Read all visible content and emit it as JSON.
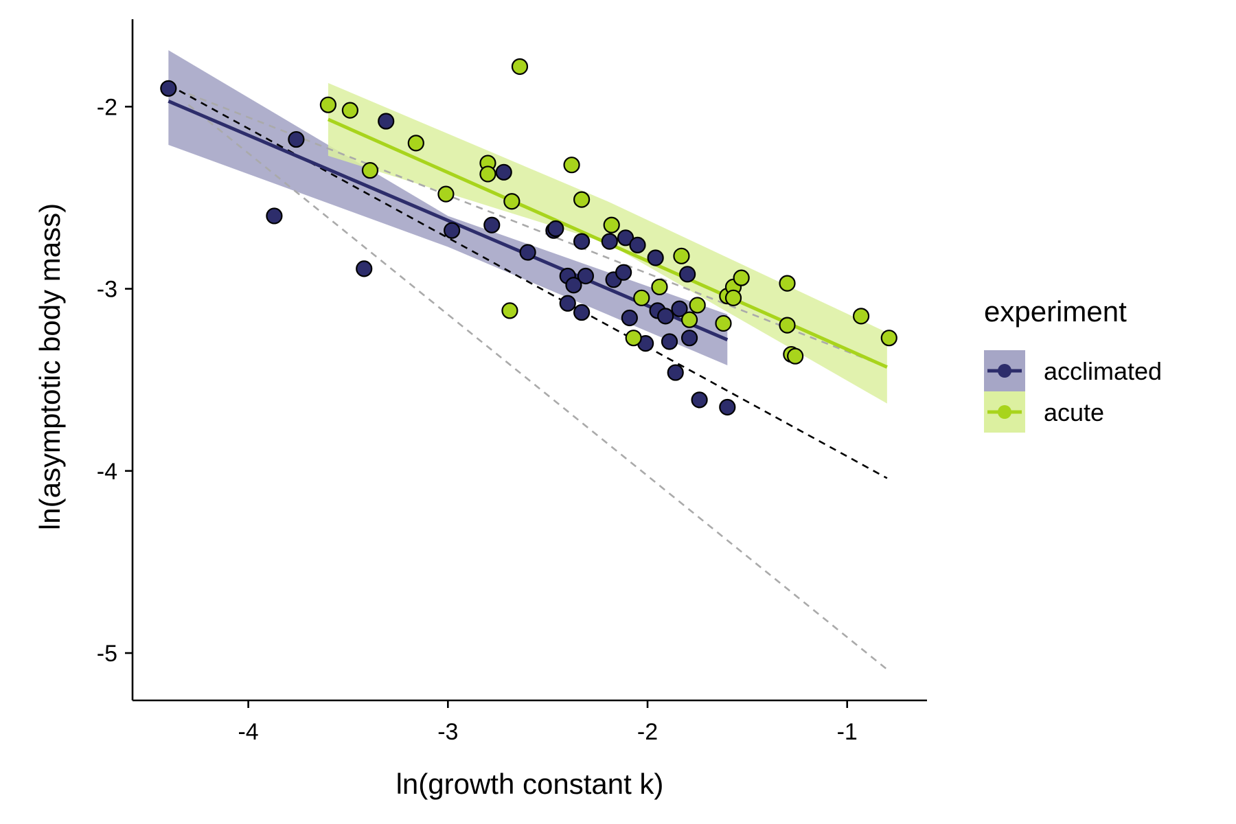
{
  "chart_data": {
    "type": "scatter",
    "xlabel": "ln(growth constant k)",
    "ylabel": "ln(asymptotic body mass)",
    "xlim": [
      -4.58,
      -0.6
    ],
    "ylim": [
      -5.26,
      -1.52
    ],
    "xticks": [
      -4,
      -3,
      -2,
      -1
    ],
    "yticks": [
      -2,
      -3,
      -4,
      -5
    ],
    "xtick_labels": [
      "-4",
      "-3",
      "-2",
      "-1"
    ],
    "ytick_labels": [
      "-2",
      "-3",
      "-4",
      "-5"
    ],
    "grid": false,
    "legend": {
      "title": "experiment",
      "position": "right",
      "entries": [
        "acclimated",
        "acute"
      ]
    },
    "series": [
      {
        "name": "acclimated",
        "color": "#2d2d6b",
        "ribbon_color": "#a6a6c6",
        "points": [
          [
            -4.4,
            -1.9
          ],
          [
            -3.87,
            -2.6
          ],
          [
            -3.76,
            -2.18
          ],
          [
            -3.42,
            -2.89
          ],
          [
            -3.31,
            -2.08
          ],
          [
            -2.98,
            -2.68
          ],
          [
            -2.78,
            -2.65
          ],
          [
            -2.72,
            -2.36
          ],
          [
            -2.6,
            -2.8
          ],
          [
            -2.47,
            -2.68
          ],
          [
            -2.46,
            -2.67
          ],
          [
            -2.4,
            -2.93
          ],
          [
            -2.4,
            -3.08
          ],
          [
            -2.37,
            -2.98
          ],
          [
            -2.33,
            -2.74
          ],
          [
            -2.33,
            -3.13
          ],
          [
            -2.31,
            -2.93
          ],
          [
            -2.19,
            -2.74
          ],
          [
            -2.17,
            -2.95
          ],
          [
            -2.12,
            -2.91
          ],
          [
            -2.11,
            -2.72
          ],
          [
            -2.09,
            -3.16
          ],
          [
            -2.05,
            -2.76
          ],
          [
            -2.01,
            -3.3
          ],
          [
            -1.96,
            -2.83
          ],
          [
            -1.95,
            -3.12
          ],
          [
            -1.91,
            -3.15
          ],
          [
            -1.89,
            -3.29
          ],
          [
            -1.86,
            -3.46
          ],
          [
            -1.84,
            -3.11
          ],
          [
            -1.8,
            -2.92
          ],
          [
            -1.79,
            -3.27
          ],
          [
            -1.74,
            -3.61
          ],
          [
            -1.6,
            -3.65
          ]
        ],
        "fit": {
          "x": [
            -4.4,
            -1.6
          ],
          "y": [
            -1.97,
            -3.28
          ]
        },
        "ribbon": {
          "x": [
            -4.4,
            -3.0,
            -1.6
          ],
          "upper": [
            -1.69,
            -2.6,
            -3.14
          ],
          "lower": [
            -2.21,
            -2.77,
            -3.42
          ]
        }
      },
      {
        "name": "acute",
        "color": "#a8d41c",
        "ribbon_color": "#dcf0a0",
        "points": [
          [
            -3.6,
            -1.99
          ],
          [
            -3.49,
            -2.02
          ],
          [
            -3.39,
            -2.35
          ],
          [
            -3.16,
            -2.2
          ],
          [
            -3.01,
            -2.48
          ],
          [
            -2.8,
            -2.31
          ],
          [
            -2.8,
            -2.37
          ],
          [
            -2.69,
            -3.12
          ],
          [
            -2.68,
            -2.52
          ],
          [
            -2.64,
            -1.78
          ],
          [
            -2.38,
            -2.32
          ],
          [
            -2.33,
            -2.51
          ],
          [
            -2.18,
            -2.65
          ],
          [
            -2.07,
            -3.27
          ],
          [
            -2.03,
            -3.05
          ],
          [
            -1.94,
            -2.99
          ],
          [
            -1.83,
            -2.82
          ],
          [
            -1.79,
            -3.17
          ],
          [
            -1.75,
            -3.09
          ],
          [
            -1.62,
            -3.19
          ],
          [
            -1.6,
            -3.04
          ],
          [
            -1.57,
            -2.99
          ],
          [
            -1.57,
            -3.05
          ],
          [
            -1.53,
            -2.94
          ],
          [
            -1.3,
            -2.97
          ],
          [
            -1.3,
            -3.2
          ],
          [
            -1.28,
            -3.36
          ],
          [
            -1.26,
            -3.37
          ],
          [
            -0.93,
            -3.15
          ],
          [
            -0.79,
            -3.27
          ]
        ],
        "fit": {
          "x": [
            -3.6,
            -0.8
          ],
          "y": [
            -2.07,
            -3.43
          ]
        },
        "ribbon": {
          "x": [
            -3.6,
            -2.2,
            -0.8
          ],
          "upper": [
            -1.87,
            -2.52,
            -3.24
          ],
          "lower": [
            -2.27,
            -2.75,
            -3.63
          ]
        }
      }
    ],
    "reference_lines": [
      {
        "style": "dashed",
        "color": "#000000",
        "x": [
          -4.4,
          -0.8
        ],
        "y": [
          -1.88,
          -4.04
        ]
      },
      {
        "style": "dashed",
        "color": "#aaaaaa",
        "x": [
          -4.3,
          -0.8
        ],
        "y": [
          -1.99,
          -5.09
        ]
      },
      {
        "style": "dashed",
        "color": "#aaaaaa",
        "x": [
          -4.3,
          -0.8
        ],
        "y": [
          -1.93,
          -3.43
        ]
      }
    ]
  }
}
